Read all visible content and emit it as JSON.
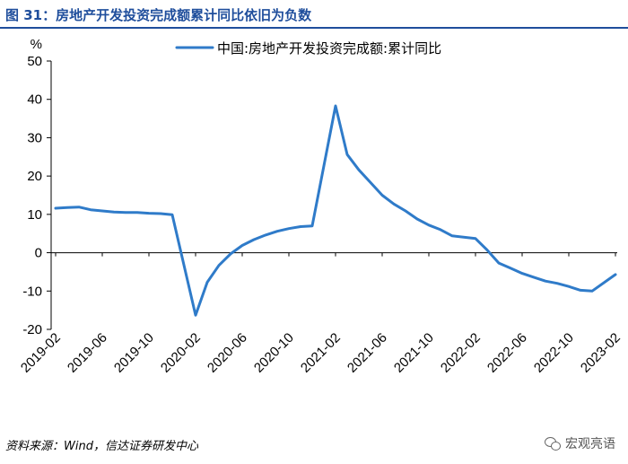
{
  "header": {
    "title": "图 31：房地产开发投资完成额累计同比依旧为负数"
  },
  "footer": {
    "source": "资料来源：Wind，信达证券研发中心",
    "watermark": "宏观亮语",
    "watermark_icon": "wechat-icon"
  },
  "chart_data": {
    "type": "line",
    "y_unit_label": "%",
    "ylim": [
      -20,
      50
    ],
    "yticks": [
      "50",
      "40",
      "30",
      "20",
      "10",
      "0",
      "-10",
      "-20"
    ],
    "xtick_labels": [
      "2019-02",
      "2019-06",
      "2019-10",
      "2020-02",
      "2020-06",
      "2020-10",
      "2021-02",
      "2021-06",
      "2021-10",
      "2022-02",
      "2022-06",
      "2022-10",
      "2023-02"
    ],
    "grid": false,
    "legend_position": "top-right",
    "series": [
      {
        "name": "中国:房地产开发投资完成额:累计同比",
        "color": "#2f7bc9",
        "x": [
          "2019-02",
          "2019-03",
          "2019-04",
          "2019-05",
          "2019-06",
          "2019-07",
          "2019-08",
          "2019-09",
          "2019-10",
          "2019-11",
          "2019-12",
          "2020-02",
          "2020-03",
          "2020-04",
          "2020-05",
          "2020-06",
          "2020-07",
          "2020-08",
          "2020-09",
          "2020-10",
          "2020-11",
          "2020-12",
          "2021-02",
          "2021-03",
          "2021-04",
          "2021-05",
          "2021-06",
          "2021-07",
          "2021-08",
          "2021-09",
          "2021-10",
          "2021-11",
          "2021-12",
          "2022-02",
          "2022-03",
          "2022-04",
          "2022-05",
          "2022-06",
          "2022-07",
          "2022-08",
          "2022-09",
          "2022-10",
          "2022-11",
          "2022-12",
          "2023-02"
        ],
        "values": [
          11.6,
          11.8,
          11.9,
          11.2,
          10.9,
          10.6,
          10.5,
          10.5,
          10.3,
          10.2,
          9.9,
          -16.3,
          -7.7,
          -3.3,
          -0.3,
          1.9,
          3.4,
          4.6,
          5.6,
          6.3,
          6.8,
          7.0,
          38.3,
          25.6,
          21.6,
          18.3,
          15.0,
          12.7,
          10.9,
          8.8,
          7.2,
          6.0,
          4.4,
          3.7,
          0.7,
          -2.7,
          -4.0,
          -5.4,
          -6.4,
          -7.4,
          -8.0,
          -8.8,
          -9.8,
          -10.0,
          -5.7
        ]
      }
    ]
  }
}
